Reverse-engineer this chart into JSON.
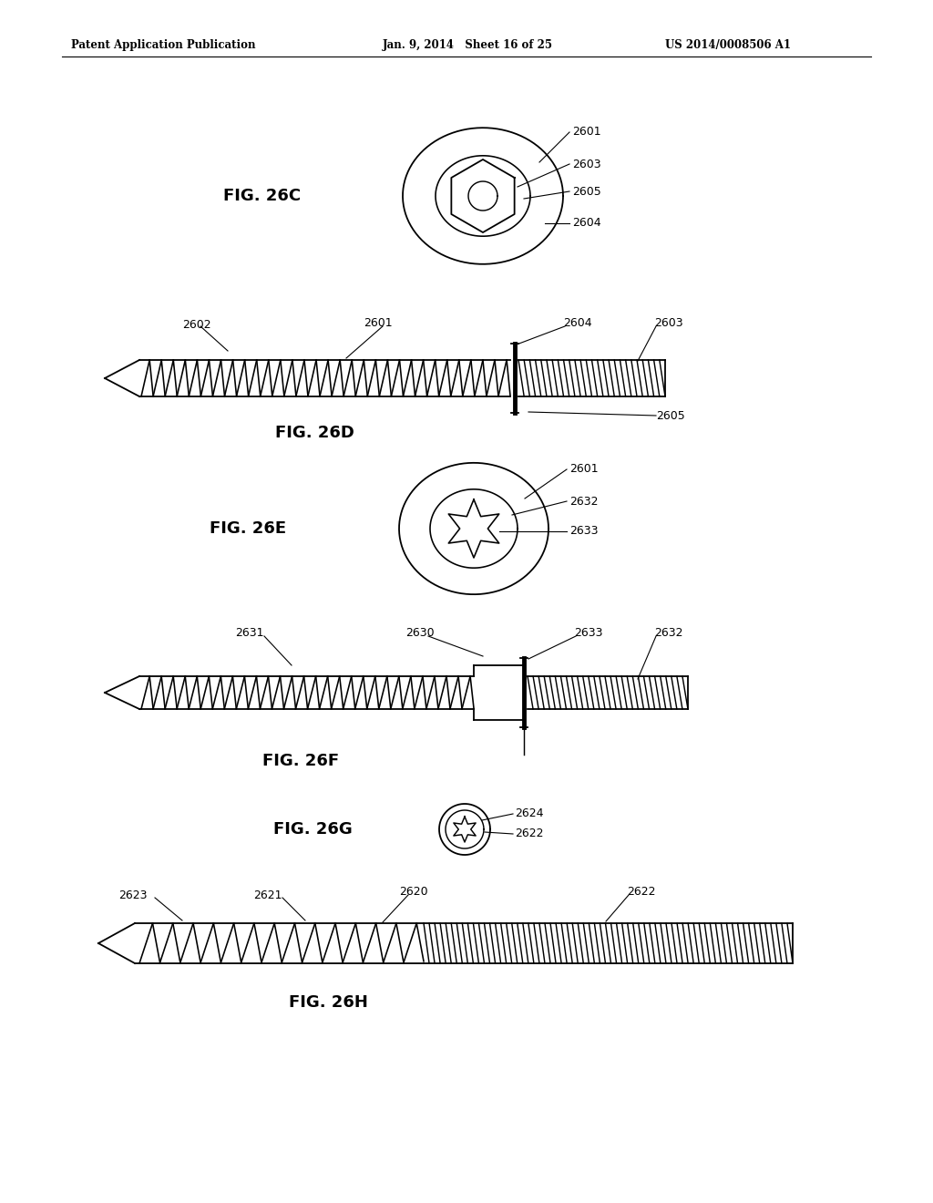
{
  "header_left": "Patent Application Publication",
  "header_mid": "Jan. 9, 2014   Sheet 16 of 25",
  "header_right": "US 2014/0008506 A1",
  "bg_color": "#ffffff",
  "line_color": "#000000",
  "fig_labels": {
    "fig26C": "FIG. 26C",
    "fig26D": "FIG. 26D",
    "fig26E": "FIG. 26E",
    "fig26F": "FIG. 26F",
    "fig26G": "FIG. 26G",
    "fig26H": "FIG. 26H"
  }
}
